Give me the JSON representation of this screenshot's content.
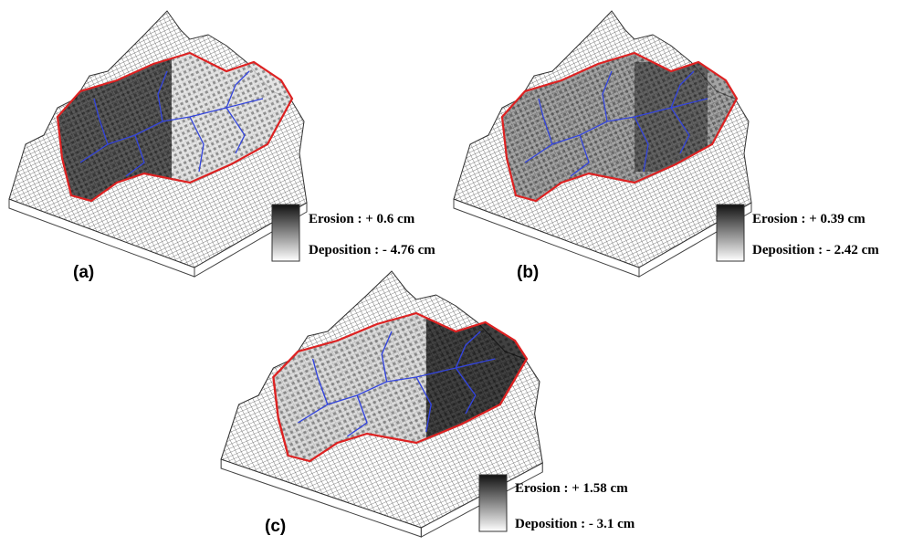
{
  "panels": [
    {
      "label": "(a)",
      "erosion": "Erosion : + 0.6 cm",
      "deposition": "Deposition : - 4.76 cm"
    },
    {
      "label": "(b)",
      "erosion": "Erosion : + 0.39 cm",
      "deposition": "Deposition : - 2.42 cm"
    },
    {
      "label": "(c)",
      "erosion": "Erosion : + 1.58 cm",
      "deposition": "Deposition : - 3.1 cm"
    }
  ]
}
